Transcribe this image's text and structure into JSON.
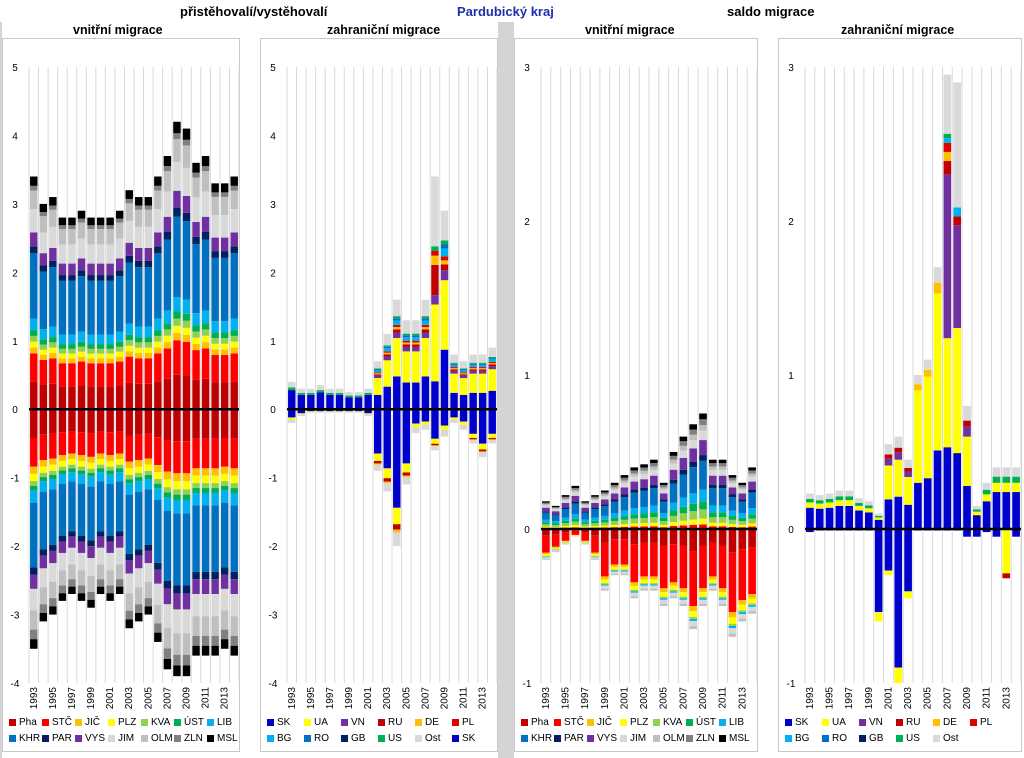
{
  "header": {
    "left": "přistěhovalí/vystěhovalí",
    "center": "Pardubický kraj",
    "right": "saldo migrace"
  },
  "chart_data": [
    {
      "type": "bar",
      "stacked": true,
      "title": "vnitřní migrace",
      "ylim": [
        -4,
        5
      ],
      "yticks": [
        "5",
        "4",
        "3",
        "2",
        "1",
        "0",
        "-1",
        "-2",
        "-3",
        "-4"
      ],
      "x_labels": [
        "1993",
        "1995",
        "1997",
        "1999",
        "2001",
        "2003",
        "2005",
        "2007",
        "2009",
        "2011",
        "2013"
      ],
      "positive_totals": [
        3.4,
        3.0,
        3.1,
        2.8,
        2.8,
        2.9,
        2.8,
        2.8,
        2.8,
        2.9,
        3.2,
        3.1,
        3.1,
        3.4,
        3.7,
        4.2,
        4.1,
        3.6,
        3.7,
        3.3,
        3.3,
        3.4
      ],
      "negative_totals": [
        -3.5,
        -3.1,
        -3.0,
        -2.8,
        -2.7,
        -2.8,
        -2.9,
        -2.7,
        -2.8,
        -2.7,
        -3.2,
        -3.1,
        -3.0,
        -3.4,
        -3.8,
        -3.9,
        -3.9,
        -3.6,
        -3.6,
        -3.6,
        -3.5,
        -3.6
      ],
      "legend": [
        "Pha",
        "STČ",
        "JIČ",
        "PLZ",
        "KVA",
        "ÚST",
        "LIB",
        "KHR",
        "PAR",
        "VYS",
        "JIM",
        "OLM",
        "ZLN",
        "MSL"
      ]
    },
    {
      "type": "bar",
      "stacked": true,
      "title": "zahraniční migrace",
      "ylim": [
        -4,
        5
      ],
      "yticks": [
        "5",
        "4",
        "3",
        "2",
        "1",
        "0",
        "-1",
        "-2",
        "-3",
        "-4"
      ],
      "x_labels": [
        "1993",
        "1995",
        "1997",
        "1999",
        "2001",
        "2003",
        "2005",
        "2007",
        "2009",
        "2011",
        "2013"
      ],
      "positive_totals": [
        0.4,
        0.3,
        0.3,
        0.35,
        0.3,
        0.3,
        0.25,
        0.25,
        0.3,
        0.7,
        1.1,
        1.6,
        1.3,
        1.3,
        1.6,
        3.4,
        2.9,
        0.8,
        0.7,
        0.8,
        0.8,
        0.9
      ],
      "negative_totals": [
        -0.2,
        -0.1,
        -0.05,
        -0.05,
        -0.05,
        -0.05,
        -0.05,
        -0.05,
        -0.1,
        -0.9,
        -1.2,
        -2.0,
        -1.1,
        -0.35,
        -0.3,
        -0.6,
        -0.4,
        -0.2,
        -0.3,
        -0.5,
        -0.7,
        -0.5
      ],
      "legend": [
        "SK",
        "UA",
        "VN",
        "RU",
        "DE",
        "PL",
        "BG",
        "RO",
        "GB",
        "US",
        "Ost",
        "SK"
      ]
    },
    {
      "type": "bar",
      "stacked": true,
      "title": "vnitřní migrace",
      "ylim": [
        -1,
        3
      ],
      "yticks": [
        "3",
        "2",
        "1",
        "0",
        "-1"
      ],
      "x_labels": [
        "1993",
        "1995",
        "1997",
        "1999",
        "2001",
        "2003",
        "2005",
        "2007",
        "2009",
        "2011",
        "2013"
      ],
      "positive_totals": [
        0.18,
        0.15,
        0.22,
        0.28,
        0.18,
        0.22,
        0.25,
        0.3,
        0.35,
        0.4,
        0.42,
        0.45,
        0.3,
        0.5,
        0.6,
        0.68,
        0.75,
        0.45,
        0.45,
        0.35,
        0.3,
        0.4
      ],
      "negative_totals": [
        -0.2,
        -0.15,
        -0.1,
        -0.05,
        -0.1,
        -0.2,
        -0.4,
        -0.3,
        -0.3,
        -0.45,
        -0.4,
        -0.4,
        -0.5,
        -0.45,
        -0.5,
        -0.65,
        -0.5,
        -0.4,
        -0.5,
        -0.7,
        -0.6,
        -0.55
      ],
      "legend": [
        "Pha",
        "STČ",
        "JIČ",
        "PLZ",
        "KVA",
        "ÚST",
        "LIB",
        "KHR",
        "PAR",
        "VYS",
        "JIM",
        "OLM",
        "ZLN",
        "MSL"
      ]
    },
    {
      "type": "bar",
      "stacked": true,
      "title": "zahraniční migrace",
      "ylim": [
        -1,
        3
      ],
      "yticks": [
        "3",
        "2",
        "1",
        "0",
        "-1"
      ],
      "x_labels": [
        "1993",
        "1995",
        "1997",
        "1999",
        "2001",
        "2003",
        "2005",
        "2007",
        "2009",
        "2011",
        "2013"
      ],
      "positive_totals": [
        0.23,
        0.22,
        0.23,
        0.25,
        0.25,
        0.2,
        0.18,
        0.1,
        0.55,
        0.6,
        0.45,
        1.0,
        1.1,
        1.7,
        2.95,
        2.9,
        0.8,
        0.15,
        0.3,
        0.4,
        0.4,
        0.4
      ],
      "negative_totals": [
        -0.02,
        -0.01,
        -0.01,
        -0.01,
        -0.01,
        -0.01,
        -0.01,
        -0.6,
        -0.3,
        -1.0,
        -0.45,
        -0.01,
        -0.01,
        -0.01,
        -0.01,
        -0.01,
        -0.05,
        -0.05,
        -0.02,
        -0.05,
        -0.32,
        -0.05
      ],
      "legend": [
        "SK",
        "UA",
        "VN",
        "RU",
        "DE",
        "PL",
        "BG",
        "RO",
        "GB",
        "US",
        "Ost"
      ]
    }
  ],
  "colors": {
    "Pha": "#c00000",
    "STČ": "#ff0000",
    "JIČ": "#ffc000",
    "PLZ": "#ffff00",
    "KVA": "#92d050",
    "ÚST": "#00b050",
    "LIB": "#00b0f0",
    "KHR": "#0070c0",
    "PAR": "#002060",
    "VYS": "#7030a0",
    "JIM": "#d9d9d9",
    "OLM": "#bfbfbf",
    "ZLN": "#808080",
    "MSL": "#000000",
    "SK": "#0000cc",
    "UA": "#ffff00",
    "VN": "#7030a0",
    "RU": "#c00000",
    "DE": "#ffc000",
    "PL": "#e00000",
    "BG": "#00b0f0",
    "RO": "#0070c0",
    "GB": "#002060",
    "US": "#00b050",
    "Ost": "#d9d9d9"
  }
}
